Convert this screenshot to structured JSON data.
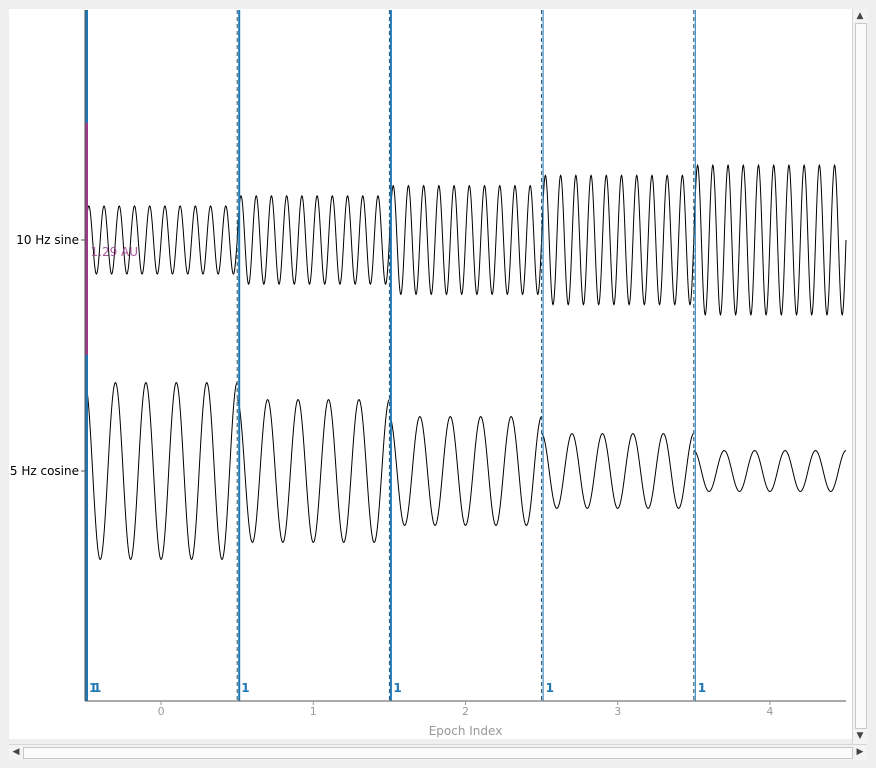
{
  "chart_data": {
    "type": "line",
    "xlabel": "Epoch Index",
    "x_ticks": [
      "0",
      "1",
      "2",
      "3",
      "4"
    ],
    "channels": [
      {
        "name": "10 Hz sine",
        "frequency_hz": 10,
        "amplitudes": [
          1.0,
          1.3,
          1.6,
          1.9,
          2.2
        ]
      },
      {
        "name": "5 Hz cosine",
        "frequency_hz": 5,
        "amplitudes": [
          2.6,
          2.1,
          1.6,
          1.1,
          0.6
        ]
      }
    ],
    "epoch_boundaries": [
      -0.5,
      0.5,
      1.5,
      2.5,
      3.5
    ],
    "event_markers": [
      {
        "epoch": 0,
        "label": "1"
      },
      {
        "epoch": 0,
        "label": "1"
      },
      {
        "epoch": 1,
        "label": "1"
      },
      {
        "epoch": 2,
        "label": "1"
      },
      {
        "epoch": 3,
        "label": "1"
      },
      {
        "epoch": 4,
        "label": "1"
      }
    ],
    "scale_bar": {
      "label": "1.29 AU",
      "color": "#9b3a88"
    },
    "colors": {
      "trace": "#000000",
      "event": "#1f77b4",
      "boundary": "#1f4e6e"
    }
  },
  "scrollbars": {
    "up": "▲",
    "down": "▼",
    "left": "◀",
    "right": "▶"
  }
}
